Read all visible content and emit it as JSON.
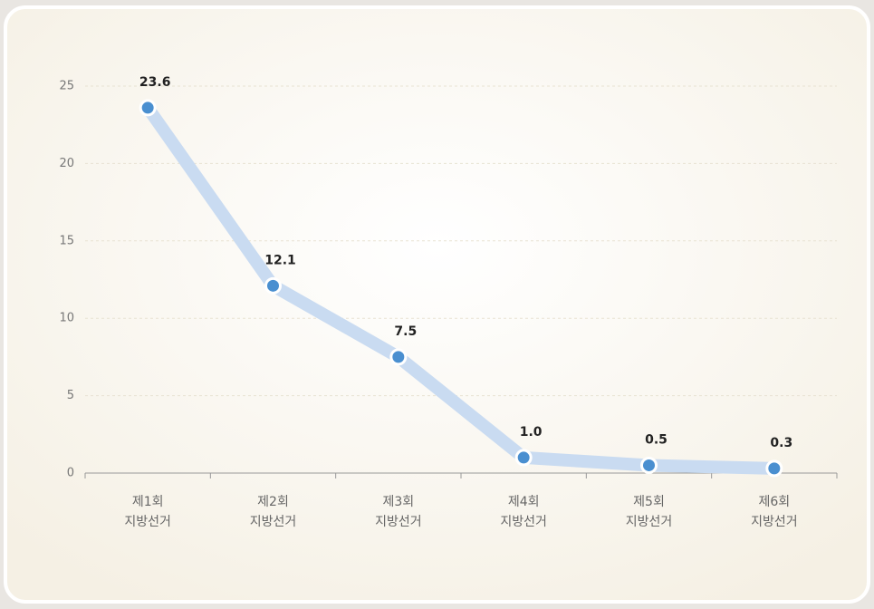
{
  "chart_data": {
    "type": "line",
    "categories": [
      [
        "제1회",
        "지방선거"
      ],
      [
        "제2회",
        "지방선거"
      ],
      [
        "제3회",
        "지방선거"
      ],
      [
        "제4회",
        "지방선거"
      ],
      [
        "제5회",
        "지방선거"
      ],
      [
        "제6회",
        "지방선거"
      ]
    ],
    "series": [
      {
        "color": "#4a8fd0",
        "line_color": "#c9dbf1",
        "values": [
          23.6,
          12.1,
          7.5,
          1.0,
          0.5,
          0.3
        ],
        "value_labels": [
          "23.6",
          "12.1",
          "7.5",
          "1.0",
          "0.5",
          "0.3"
        ]
      }
    ],
    "ylim": [
      0,
      25
    ],
    "yticks": [
      0,
      5,
      10,
      15,
      20,
      25
    ],
    "grid": true
  }
}
